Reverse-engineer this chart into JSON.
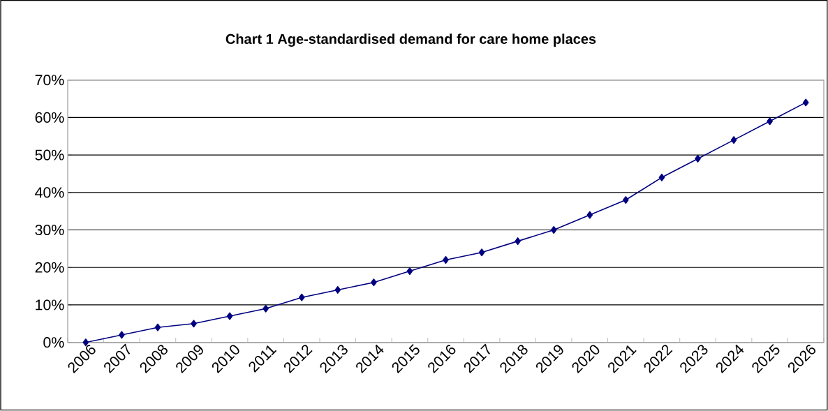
{
  "chart_data": {
    "type": "line",
    "title": "Chart 1 Age-standardised demand for care home places",
    "categories": [
      "2006",
      "2007",
      "2008",
      "2009",
      "2010",
      "2011",
      "2012",
      "2013",
      "2014",
      "2015",
      "2016",
      "2017",
      "2018",
      "2019",
      "2020",
      "2021",
      "2022",
      "2023",
      "2024",
      "2025",
      "2026"
    ],
    "values": [
      0,
      2,
      4,
      5,
      7,
      9,
      12,
      14,
      16,
      19,
      22,
      24,
      27,
      30,
      34,
      38,
      44,
      49,
      54,
      59,
      64
    ],
    "color": "#000080",
    "marker": "diamond",
    "line_style": "solid",
    "grid": "y",
    "ylim": [
      0,
      70
    ],
    "yticks": [
      {
        "value": 0,
        "label": "0%"
      },
      {
        "value": 10,
        "label": "10%"
      },
      {
        "value": 20,
        "label": "20%"
      },
      {
        "value": 30,
        "label": "30%"
      },
      {
        "value": 40,
        "label": "40%"
      },
      {
        "value": 50,
        "label": "50%"
      },
      {
        "value": 60,
        "label": "60%"
      },
      {
        "value": 70,
        "label": "70%"
      }
    ]
  }
}
